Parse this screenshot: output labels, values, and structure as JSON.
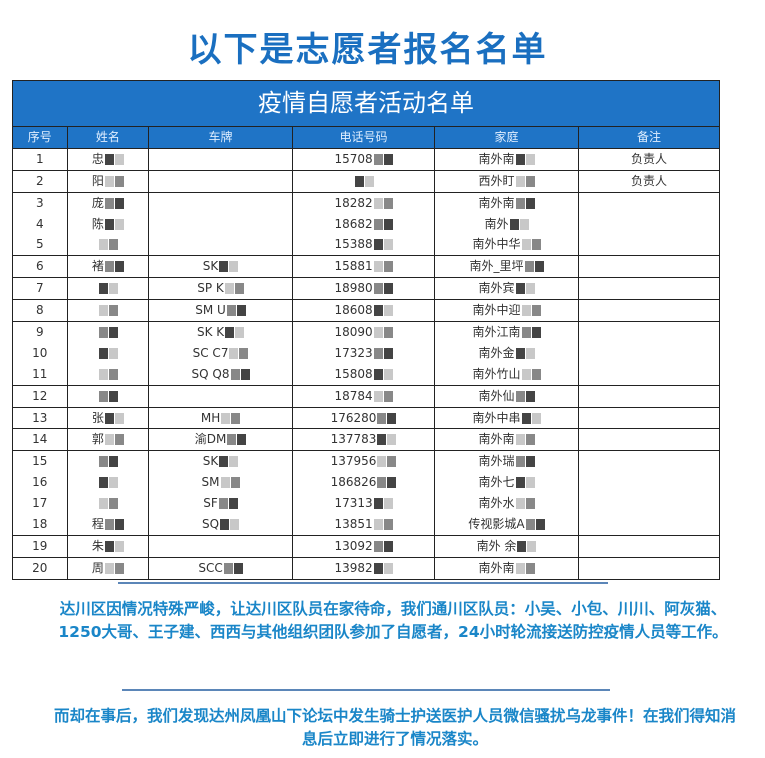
{
  "page_title": "以下是志愿者报名名单",
  "table": {
    "title": "疫情自愿者活动名单",
    "headers": [
      "序号",
      "姓名",
      "车牌",
      "电话号码",
      "家庭",
      "备注"
    ],
    "rows": [
      {
        "no": "1",
        "name": "忠",
        "plate": "",
        "phone": "15708",
        "addr": "南外南",
        "note": "负责人"
      },
      {
        "no": "2",
        "name": "阳",
        "plate": "",
        "phone": "",
        "addr": "西外盯",
        "note": "负责人"
      },
      {
        "no": "3",
        "name": "庞",
        "plate": "",
        "phone": "18282",
        "addr": "南外南",
        "note": ""
      },
      {
        "no": "4",
        "name": "陈",
        "plate": "",
        "phone": "18682",
        "addr": "南外",
        "note": ""
      },
      {
        "no": "5",
        "name": "",
        "plate": "",
        "phone": "15388",
        "addr": "南外中华",
        "note": ""
      },
      {
        "no": "6",
        "name": "褚",
        "plate": "SK",
        "phone": "15881",
        "addr": "南外_里坪",
        "note": ""
      },
      {
        "no": "7",
        "name": "",
        "plate": "SP K",
        "phone": "18980",
        "addr": "南外宾",
        "note": ""
      },
      {
        "no": "8",
        "name": "",
        "plate": "SM U",
        "phone": "18608",
        "addr": "南外中迎",
        "note": ""
      },
      {
        "no": "9",
        "name": "",
        "plate": "SK K",
        "phone": "18090",
        "addr": "南外江南",
        "note": ""
      },
      {
        "no": "10",
        "name": "",
        "plate": "SC C7",
        "phone": "17323",
        "addr": "南外金",
        "note": ""
      },
      {
        "no": "11",
        "name": "",
        "plate": "SQ Q8",
        "phone": "15808",
        "addr": "南外竹山",
        "note": ""
      },
      {
        "no": "12",
        "name": "",
        "plate": "",
        "phone": "18784",
        "addr": "南外仙",
        "note": ""
      },
      {
        "no": "13",
        "name": "张",
        "plate": "MH",
        "phone": "176280",
        "addr": "南外中串",
        "note": ""
      },
      {
        "no": "14",
        "name": "郭",
        "plate": "渝DM",
        "phone": "137783",
        "addr": "南外南",
        "note": ""
      },
      {
        "no": "15",
        "name": "",
        "plate": "SK",
        "phone": "137956",
        "addr": "南外瑞",
        "note": ""
      },
      {
        "no": "16",
        "name": "",
        "plate": "SM",
        "phone": "186826",
        "addr": "南外七",
        "note": ""
      },
      {
        "no": "17",
        "name": "",
        "plate": "SF",
        "phone": "17313",
        "addr": "南外水",
        "note": ""
      },
      {
        "no": "18",
        "name": "程",
        "plate": "SQ",
        "phone": "13851",
        "addr": "传视影城A",
        "note": ""
      },
      {
        "no": "19",
        "name": "朱",
        "plate": "",
        "phone": "13092",
        "addr": "南外 余",
        "note": ""
      },
      {
        "no": "20",
        "name": "周",
        "plate": "SCC",
        "phone": "13982",
        "addr": "南外南",
        "note": ""
      }
    ],
    "group_starts": [
      1,
      2,
      3,
      6,
      7,
      8,
      9,
      12,
      13,
      14,
      15,
      19,
      20
    ]
  },
  "paragraph1": "达川区因情况特殊严峻，让达川区队员在家待命，我们通川区队员：小吴、小包、川川、阿灰猫、1250大哥、王子建、西西与其他组织团队参加了自愿者，24小时轮流接送防控疫情人员等工作。",
  "paragraph2": "而却在事后，我们发现达州凤凰山下论坛中发生骑士护送医护人员微信骚扰乌龙事件！在我们得知消息后立即进行了情况落实。",
  "colors": {
    "title": "#1a6fc0",
    "header_bg": "#1f74c6",
    "paragraph": "#1a86c8"
  }
}
